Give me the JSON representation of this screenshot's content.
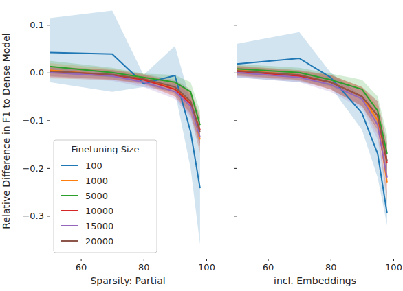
{
  "chart_data": [
    {
      "type": "line",
      "x_label": "Sparsity: Partial",
      "y_label": "Relative Difference in F1 to Dense Model",
      "x": [
        50,
        70,
        80,
        90,
        95,
        98
      ],
      "xlim": [
        50,
        100
      ],
      "xticks": [
        60,
        80,
        100
      ],
      "ylim": [
        -0.39,
        0.145
      ],
      "yticks": [
        {
          "value": -0.3,
          "label": "−0.3"
        },
        {
          "value": -0.2,
          "label": "−0.2"
        },
        {
          "value": -0.1,
          "label": "−0.1"
        },
        {
          "value": 0,
          "label": "0.0"
        },
        0.1
      ],
      "grid": false,
      "legend": "lower left",
      "legend_title": "Finetuning Size",
      "series": [
        {
          "name": "100",
          "color": "#1f77b4",
          "values": [
            0.042,
            0.039,
            -0.023,
            -0.006,
            -0.124,
            -0.242
          ],
          "lower": [
            -0.02,
            -0.04,
            -0.03,
            -0.04,
            -0.2,
            -0.36
          ],
          "upper": [
            0.114,
            0.13,
            -0.005,
            0.056,
            -0.06,
            -0.13
          ]
        },
        {
          "name": "1000",
          "color": "#ff7f0e",
          "values": [
            0.005,
            -0.005,
            -0.012,
            -0.035,
            -0.06,
            -0.14
          ],
          "lower": [
            -0.012,
            -0.015,
            -0.022,
            -0.05,
            -0.085,
            -0.17
          ],
          "upper": [
            0.02,
            0.008,
            -0.003,
            -0.02,
            -0.04,
            -0.11
          ]
        },
        {
          "name": "5000",
          "color": "#2ca02c",
          "values": [
            0.013,
            0.0,
            -0.01,
            -0.02,
            -0.04,
            -0.11
          ],
          "lower": [
            0.0,
            -0.01,
            -0.018,
            -0.035,
            -0.06,
            -0.14
          ],
          "upper": [
            0.025,
            0.01,
            -0.002,
            -0.005,
            -0.02,
            -0.08
          ]
        },
        {
          "name": "10000",
          "color": "#d62728",
          "values": [
            0.003,
            -0.005,
            -0.015,
            -0.035,
            -0.065,
            -0.12
          ],
          "lower": [
            -0.008,
            -0.015,
            -0.025,
            -0.05,
            -0.09,
            -0.15
          ],
          "upper": [
            0.013,
            0.005,
            -0.005,
            -0.02,
            -0.04,
            -0.09
          ]
        },
        {
          "name": "15000",
          "color": "#9467bd",
          "values": [
            0.0,
            -0.007,
            -0.02,
            -0.04,
            -0.07,
            -0.135
          ],
          "lower": [
            -0.01,
            -0.017,
            -0.03,
            -0.055,
            -0.095,
            -0.165
          ],
          "upper": [
            0.01,
            0.003,
            -0.01,
            -0.025,
            -0.045,
            -0.105
          ]
        },
        {
          "name": "20000",
          "color": "#8c564b",
          "values": [
            0.003,
            -0.004,
            -0.013,
            -0.03,
            -0.06,
            -0.125
          ],
          "lower": [
            -0.007,
            -0.014,
            -0.023,
            -0.045,
            -0.085,
            -0.155
          ],
          "upper": [
            0.013,
            0.006,
            -0.003,
            -0.015,
            -0.035,
            -0.095
          ]
        }
      ]
    },
    {
      "type": "line",
      "x_label": "incl. Embeddings",
      "x": [
        50,
        70,
        80,
        90,
        95,
        98
      ],
      "xlim": [
        50,
        100
      ],
      "xticks": [
        60,
        80,
        100
      ],
      "ylim": [
        -0.39,
        0.145
      ],
      "yticks": [
        -0.3,
        -0.2,
        -0.1,
        0,
        0.1
      ],
      "grid": false,
      "tick_labels": "x",
      "series": [
        {
          "color": "#1f77b4",
          "values": [
            0.018,
            0.03,
            -0.01,
            -0.085,
            -0.17,
            -0.295
          ],
          "lower": [
            -0.01,
            -0.02,
            -0.03,
            -0.12,
            -0.22,
            -0.32
          ],
          "upper": [
            0.06,
            0.085,
            0.0,
            -0.05,
            -0.12,
            -0.25
          ]
        },
        {
          "color": "#ff7f0e",
          "values": [
            0.005,
            -0.005,
            -0.02,
            -0.05,
            -0.1,
            -0.23
          ],
          "lower": [
            -0.005,
            -0.015,
            -0.035,
            -0.07,
            -0.13,
            -0.27
          ],
          "upper": [
            0.015,
            0.005,
            -0.005,
            -0.03,
            -0.07,
            -0.19
          ]
        },
        {
          "color": "#2ca02c",
          "values": [
            0.008,
            0.0,
            -0.015,
            -0.035,
            -0.08,
            -0.17
          ],
          "lower": [
            -0.002,
            -0.01,
            -0.028,
            -0.055,
            -0.11,
            -0.21
          ],
          "upper": [
            0.018,
            0.01,
            -0.002,
            -0.015,
            -0.05,
            -0.13
          ]
        },
        {
          "color": "#d62728",
          "values": [
            0.003,
            -0.007,
            -0.02,
            -0.05,
            -0.09,
            -0.19
          ],
          "lower": [
            -0.007,
            -0.017,
            -0.035,
            -0.07,
            -0.12,
            -0.23
          ],
          "upper": [
            0.013,
            0.003,
            -0.005,
            -0.03,
            -0.06,
            -0.15
          ]
        },
        {
          "color": "#9467bd",
          "values": [
            0.0,
            -0.01,
            -0.025,
            -0.055,
            -0.11,
            -0.22
          ],
          "lower": [
            -0.01,
            -0.02,
            -0.04,
            -0.075,
            -0.14,
            -0.26
          ],
          "upper": [
            0.01,
            0.0,
            -0.01,
            -0.035,
            -0.08,
            -0.18
          ]
        },
        {
          "color": "#8c564b",
          "values": [
            0.004,
            -0.005,
            -0.02,
            -0.05,
            -0.09,
            -0.185
          ],
          "lower": [
            -0.006,
            -0.015,
            -0.035,
            -0.07,
            -0.12,
            -0.225
          ],
          "upper": [
            0.014,
            0.005,
            -0.005,
            -0.03,
            -0.06,
            -0.145
          ]
        }
      ]
    }
  ]
}
